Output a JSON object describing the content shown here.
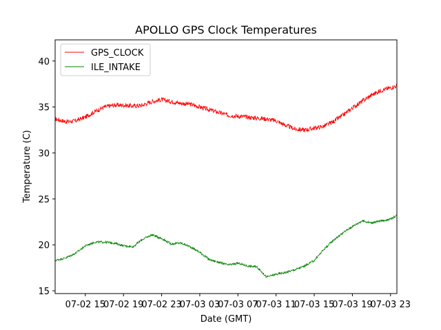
{
  "chart_data": {
    "type": "line",
    "title": "APOLLO GPS Clock Temperatures",
    "xlabel": "Date (GMT)",
    "ylabel": "Temperature (C)",
    "xlim": [
      "07-02 11:50",
      "07-03 23:40"
    ],
    "ylim": [
      14.7,
      42.3
    ],
    "x_ticks": [
      "07-02 15",
      "07-02 19",
      "07-02 23",
      "07-03 03",
      "07-03 07",
      "07-03 11",
      "07-03 15",
      "07-03 19",
      "07-03 23"
    ],
    "y_ticks": [
      15,
      20,
      25,
      30,
      35,
      40
    ],
    "grid": false,
    "legend": "upper-left",
    "series": [
      {
        "name": "GPS_CLOCK",
        "color": "#ff0000",
        "noise": 0.25,
        "x": [
          "07-02 11:50",
          "07-02 13:00",
          "07-02 14:00",
          "07-02 15:00",
          "07-02 16:00",
          "07-02 17:00",
          "07-02 18:00",
          "07-02 19:00",
          "07-02 20:00",
          "07-02 21:00",
          "07-02 22:00",
          "07-02 23:00",
          "07-03 00:00",
          "07-03 01:00",
          "07-03 02:00",
          "07-03 03:00",
          "07-03 04:00",
          "07-03 05:00",
          "07-03 06:00",
          "07-03 07:00",
          "07-03 08:00",
          "07-03 09:00",
          "07-03 10:00",
          "07-03 11:00",
          "07-03 12:00",
          "07-03 13:00",
          "07-03 14:00",
          "07-03 15:00",
          "07-03 16:00",
          "07-03 17:00",
          "07-03 18:00",
          "07-03 19:00",
          "07-03 20:00",
          "07-03 21:00",
          "07-03 22:00",
          "07-03 23:00",
          "07-03 23:40"
        ],
        "y": [
          33.7,
          33.4,
          33.5,
          33.9,
          34.5,
          35.0,
          35.2,
          35.2,
          35.1,
          35.2,
          35.6,
          35.8,
          35.6,
          35.4,
          35.3,
          35.0,
          34.7,
          34.4,
          34.1,
          34.0,
          33.9,
          33.8,
          33.7,
          33.5,
          33.0,
          32.6,
          32.5,
          32.7,
          32.9,
          33.4,
          34.1,
          34.9,
          35.6,
          36.3,
          36.8,
          37.1,
          37.3
        ]
      },
      {
        "name": "ILE_INTAKE",
        "color": "#008000",
        "noise": 0.12,
        "x": [
          "07-02 11:50",
          "07-02 13:00",
          "07-02 14:00",
          "07-02 15:00",
          "07-02 16:00",
          "07-02 17:00",
          "07-02 18:00",
          "07-02 19:00",
          "07-02 20:00",
          "07-02 21:00",
          "07-02 22:00",
          "07-02 23:00",
          "07-03 00:00",
          "07-03 01:00",
          "07-03 02:00",
          "07-03 03:00",
          "07-03 04:00",
          "07-03 05:00",
          "07-03 06:00",
          "07-03 07:00",
          "07-03 08:00",
          "07-03 09:00",
          "07-03 10:00",
          "07-03 11:00",
          "07-03 12:00",
          "07-03 13:00",
          "07-03 14:00",
          "07-03 15:00",
          "07-03 16:00",
          "07-03 17:00",
          "07-03 18:00",
          "07-03 19:00",
          "07-03 20:00",
          "07-03 21:00",
          "07-03 22:00",
          "07-03 23:00",
          "07-03 23:40"
        ],
        "y": [
          18.3,
          18.6,
          19.1,
          19.9,
          20.3,
          20.3,
          20.2,
          19.9,
          19.8,
          20.6,
          21.1,
          20.7,
          20.1,
          20.2,
          19.8,
          19.2,
          18.4,
          18.1,
          17.8,
          18.0,
          17.7,
          17.6,
          16.5,
          16.8,
          17.0,
          17.3,
          17.7,
          18.3,
          19.5,
          20.5,
          21.3,
          22.0,
          22.6,
          22.4,
          22.6,
          22.8,
          23.2
        ]
      }
    ]
  }
}
